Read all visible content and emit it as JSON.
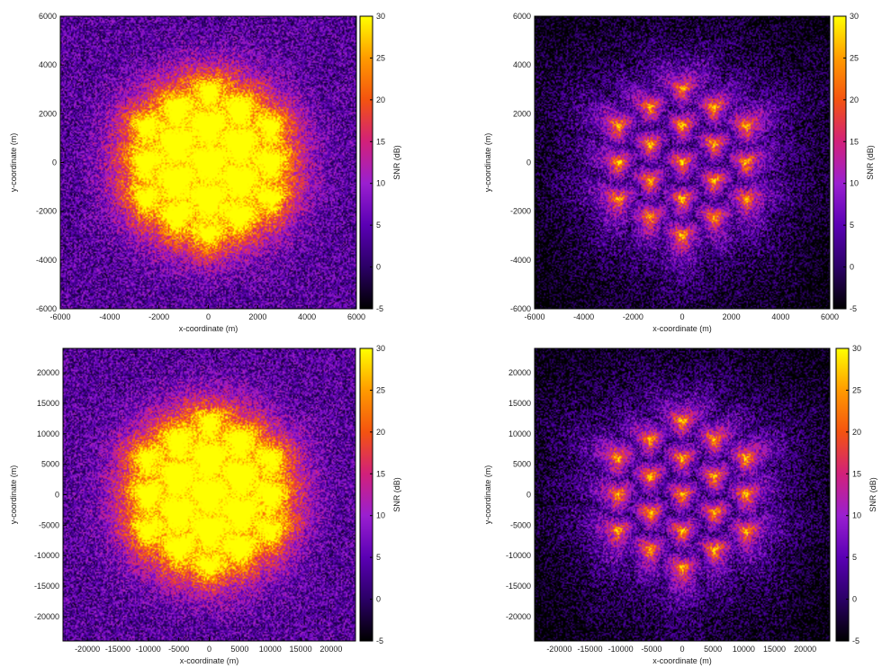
{
  "colorbar": {
    "label": "SNR (dB)",
    "range": [
      -5,
      30
    ],
    "ticks": [
      -5,
      0,
      5,
      10,
      15,
      20,
      25,
      30
    ],
    "colormap": [
      "#000000",
      "#2b0066",
      "#5a00b4",
      "#9a1fd0",
      "#d2207a",
      "#f45310",
      "#ff9b00",
      "#ffff00"
    ]
  },
  "chart_data": [
    {
      "type": "heatmap",
      "panel": "top-left",
      "xlabel": "x-coordinate (m)",
      "ylabel": "y-coordinate (m)",
      "xlim": [
        -6000,
        6000
      ],
      "ylim": [
        -6000,
        6000
      ],
      "xticks": [
        -6000,
        -4000,
        -2000,
        0,
        2000,
        4000,
        6000
      ],
      "yticks": [
        -6000,
        -4000,
        -2000,
        0,
        2000,
        4000,
        6000
      ],
      "zlabel": "SNR (dB)",
      "zlim": [
        -5,
        30
      ],
      "site_spacing": 1500,
      "pattern": "bright"
    },
    {
      "type": "heatmap",
      "panel": "top-right",
      "xlabel": "x-coordinate (m)",
      "ylabel": "y-coordinate (m)",
      "xlim": [
        -6000,
        6000
      ],
      "ylim": [
        -6000,
        6000
      ],
      "xticks": [
        -6000,
        -4000,
        -2000,
        0,
        2000,
        4000,
        6000
      ],
      "yticks": [
        -6000,
        -4000,
        -2000,
        0,
        2000,
        4000,
        6000
      ],
      "zlabel": "SNR (dB)",
      "zlim": [
        -5,
        30
      ],
      "site_spacing": 1500,
      "pattern": "dim"
    },
    {
      "type": "heatmap",
      "panel": "bottom-left",
      "xlabel": "x-coordinate (m)",
      "ylabel": "y-coordinate (m)",
      "xlim": [
        -24000,
        24000
      ],
      "ylim": [
        -24000,
        24000
      ],
      "xticks": [
        -20000,
        -15000,
        -10000,
        -5000,
        0,
        5000,
        10000,
        15000,
        20000
      ],
      "yticks": [
        -20000,
        -15000,
        -10000,
        -5000,
        0,
        5000,
        10000,
        15000,
        20000
      ],
      "zlabel": "SNR (dB)",
      "zlim": [
        -5,
        30
      ],
      "site_spacing": 6000,
      "pattern": "bright"
    },
    {
      "type": "heatmap",
      "panel": "bottom-right",
      "xlabel": "x-coordinate (m)",
      "ylabel": "y-coordinate (m)",
      "xlim": [
        -24000,
        24000
      ],
      "ylim": [
        -24000,
        24000
      ],
      "xticks": [
        -20000,
        -15000,
        -10000,
        -5000,
        0,
        5000,
        10000,
        15000,
        20000
      ],
      "yticks": [
        -20000,
        -15000,
        -10000,
        -5000,
        0,
        5000,
        10000,
        15000,
        20000
      ],
      "zlabel": "SNR (dB)",
      "zlim": [
        -5,
        30
      ],
      "site_spacing": 6000,
      "pattern": "dim"
    }
  ]
}
